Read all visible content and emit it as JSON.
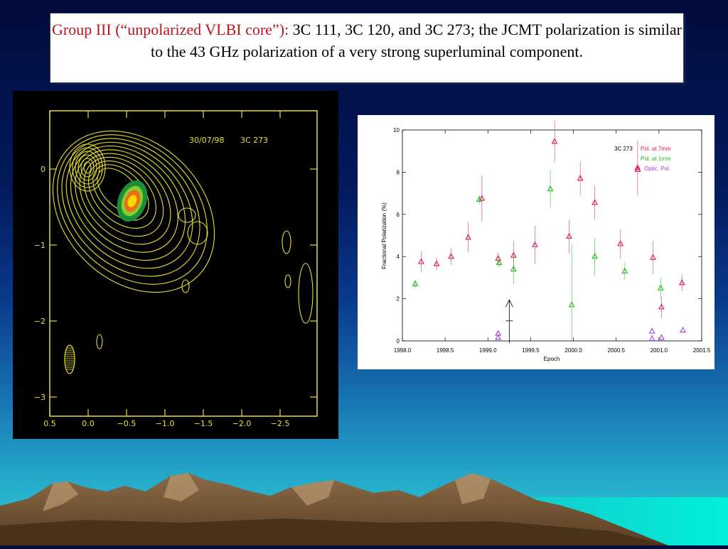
{
  "slide": {
    "title_red": "Group III (“unpolarized VLBI core”):",
    "title_rest": " 3C 111, 3C 120, and 3C 273; the JCMT polarization is similar to the 43 GHz polarization of a very strong superluminal component."
  },
  "vlbi_map": {
    "annotation_date": "30/07/98",
    "annotation_source": "3C 273",
    "x_ticks": [
      "0.5",
      "0.0",
      "−0.5",
      "−1.0",
      "−1.5",
      "−2.0",
      "−2.5"
    ],
    "y_ticks": [
      "0",
      "−1",
      "−2",
      "−3"
    ],
    "contour_color": "#e8e030"
  },
  "chart_data": {
    "type": "scatter",
    "xlabel": "Epoch",
    "ylabel": "Fractional Polarization (%)",
    "xlim": [
      1998.0,
      2001.5
    ],
    "ylim": [
      0,
      10
    ],
    "x_ticks": [
      "1998.0",
      "1998.5",
      "1999.0",
      "1999.5",
      "2000.0",
      "2000.5",
      "2001.0",
      "2001.5"
    ],
    "y_ticks": [
      "0",
      "2",
      "4",
      "6",
      "8",
      "10"
    ],
    "legend_title": "3C 273",
    "legend_position": "top-right",
    "arrow_epoch": 1999.25,
    "series": [
      {
        "name": "Pol. at 7mm",
        "color": "#e0195a",
        "marker": "triangle",
        "points": [
          {
            "x": 1998.22,
            "y": 3.75,
            "err": 0.5
          },
          {
            "x": 1998.4,
            "y": 3.65,
            "err": 0.3
          },
          {
            "x": 1998.57,
            "y": 4.0,
            "err": 0.4
          },
          {
            "x": 1998.77,
            "y": 4.9,
            "err": 0.7
          },
          {
            "x": 1998.93,
            "y": 6.75,
            "err": 1.1
          },
          {
            "x": 1999.12,
            "y": 3.9,
            "err": 0.3
          },
          {
            "x": 1999.3,
            "y": 4.05,
            "err": 0.7
          },
          {
            "x": 1999.55,
            "y": 4.55,
            "err": 0.9
          },
          {
            "x": 1999.78,
            "y": 9.45,
            "err": 1.0
          },
          {
            "x": 1999.95,
            "y": 4.95,
            "err": 0.8
          },
          {
            "x": 2000.08,
            "y": 7.7,
            "err": 0.8
          },
          {
            "x": 2000.25,
            "y": 6.55,
            "err": 0.8
          },
          {
            "x": 2000.55,
            "y": 4.6,
            "err": 0.7
          },
          {
            "x": 2000.75,
            "y": 8.2,
            "err": 1.3
          },
          {
            "x": 2000.93,
            "y": 3.95,
            "err": 0.8
          },
          {
            "x": 2001.03,
            "y": 1.6,
            "err": 0.5
          },
          {
            "x": 2001.27,
            "y": 2.75,
            "err": 0.4
          }
        ]
      },
      {
        "name": "Pol. at 1mm",
        "color": "#1db81d",
        "marker": "triangle",
        "points": [
          {
            "x": 1998.15,
            "y": 2.7,
            "err": 0.2
          },
          {
            "x": 1998.9,
            "y": 6.7,
            "err": 0.2
          },
          {
            "x": 1999.13,
            "y": 3.7,
            "err": 0.2
          },
          {
            "x": 1999.3,
            "y": 3.4,
            "err": 0.7
          },
          {
            "x": 1999.73,
            "y": 7.2,
            "err": 0.9
          },
          {
            "x": 1999.98,
            "y": 1.7,
            "err": 2.9
          },
          {
            "x": 2000.25,
            "y": 4.0,
            "err": 0.9
          },
          {
            "x": 2000.6,
            "y": 3.3,
            "err": 0.4
          },
          {
            "x": 2001.02,
            "y": 2.5,
            "err": 0.5
          }
        ]
      },
      {
        "name": "Optic. Pol.",
        "color": "#a040e0",
        "marker": "triangle",
        "points": [
          {
            "x": 1999.12,
            "y": 0.35,
            "err": 0
          },
          {
            "x": 1999.12,
            "y": 0.15,
            "err": 0
          },
          {
            "x": 2000.92,
            "y": 0.45,
            "err": 0
          },
          {
            "x": 2000.92,
            "y": 0.1,
            "err": 0
          },
          {
            "x": 2001.03,
            "y": 0.15,
            "err": 0
          },
          {
            "x": 2001.28,
            "y": 0.5,
            "err": 0
          }
        ]
      }
    ]
  }
}
